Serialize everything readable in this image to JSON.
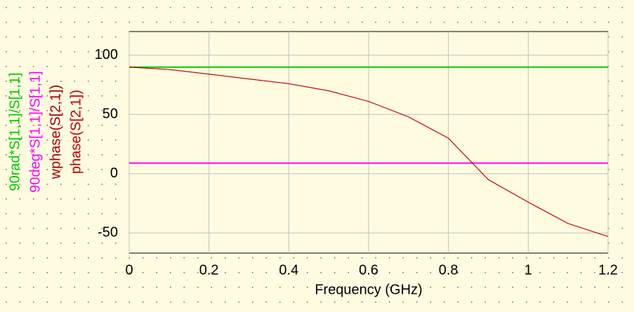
{
  "chart_data": {
    "type": "line",
    "x_label": "Frequency (GHz)",
    "x": [
      0,
      0.1,
      0.2,
      0.3,
      0.4,
      0.5,
      0.6,
      0.7,
      0.8,
      0.9,
      1.0,
      1.1,
      1.2
    ],
    "series": [
      {
        "name": "90rad*S[1,1]/S[1,1]",
        "color": "#00c800",
        "values": [
          90,
          90,
          90,
          90,
          90,
          90,
          90,
          90,
          90,
          90,
          90,
          90,
          90
        ]
      },
      {
        "name": "90deg*S[1,1]/S[1,1]",
        "color": "#ff00ff",
        "values": [
          9,
          9,
          9,
          9,
          9,
          9,
          9,
          9,
          9,
          9,
          9,
          9,
          9
        ]
      },
      {
        "name": "wphase(S[2,1])",
        "color": "#a00000",
        "values": [
          90,
          88,
          84,
          80,
          76,
          70,
          61,
          48,
          30,
          -5,
          -24,
          -42,
          -53
        ]
      },
      {
        "name": "phase(S[2,1])",
        "color": "#c00000",
        "values": [
          90,
          88,
          84,
          80,
          76,
          70,
          61,
          48,
          30,
          -5,
          -24,
          -42,
          -53
        ]
      }
    ],
    "xlim": [
      0,
      1.2
    ],
    "xticks": [
      0,
      0.2,
      0.4,
      0.6,
      0.8,
      1,
      1.2
    ],
    "ylim": [
      -67,
      120
    ],
    "yticks": [
      -50,
      0,
      50,
      100
    ],
    "grid": true
  }
}
